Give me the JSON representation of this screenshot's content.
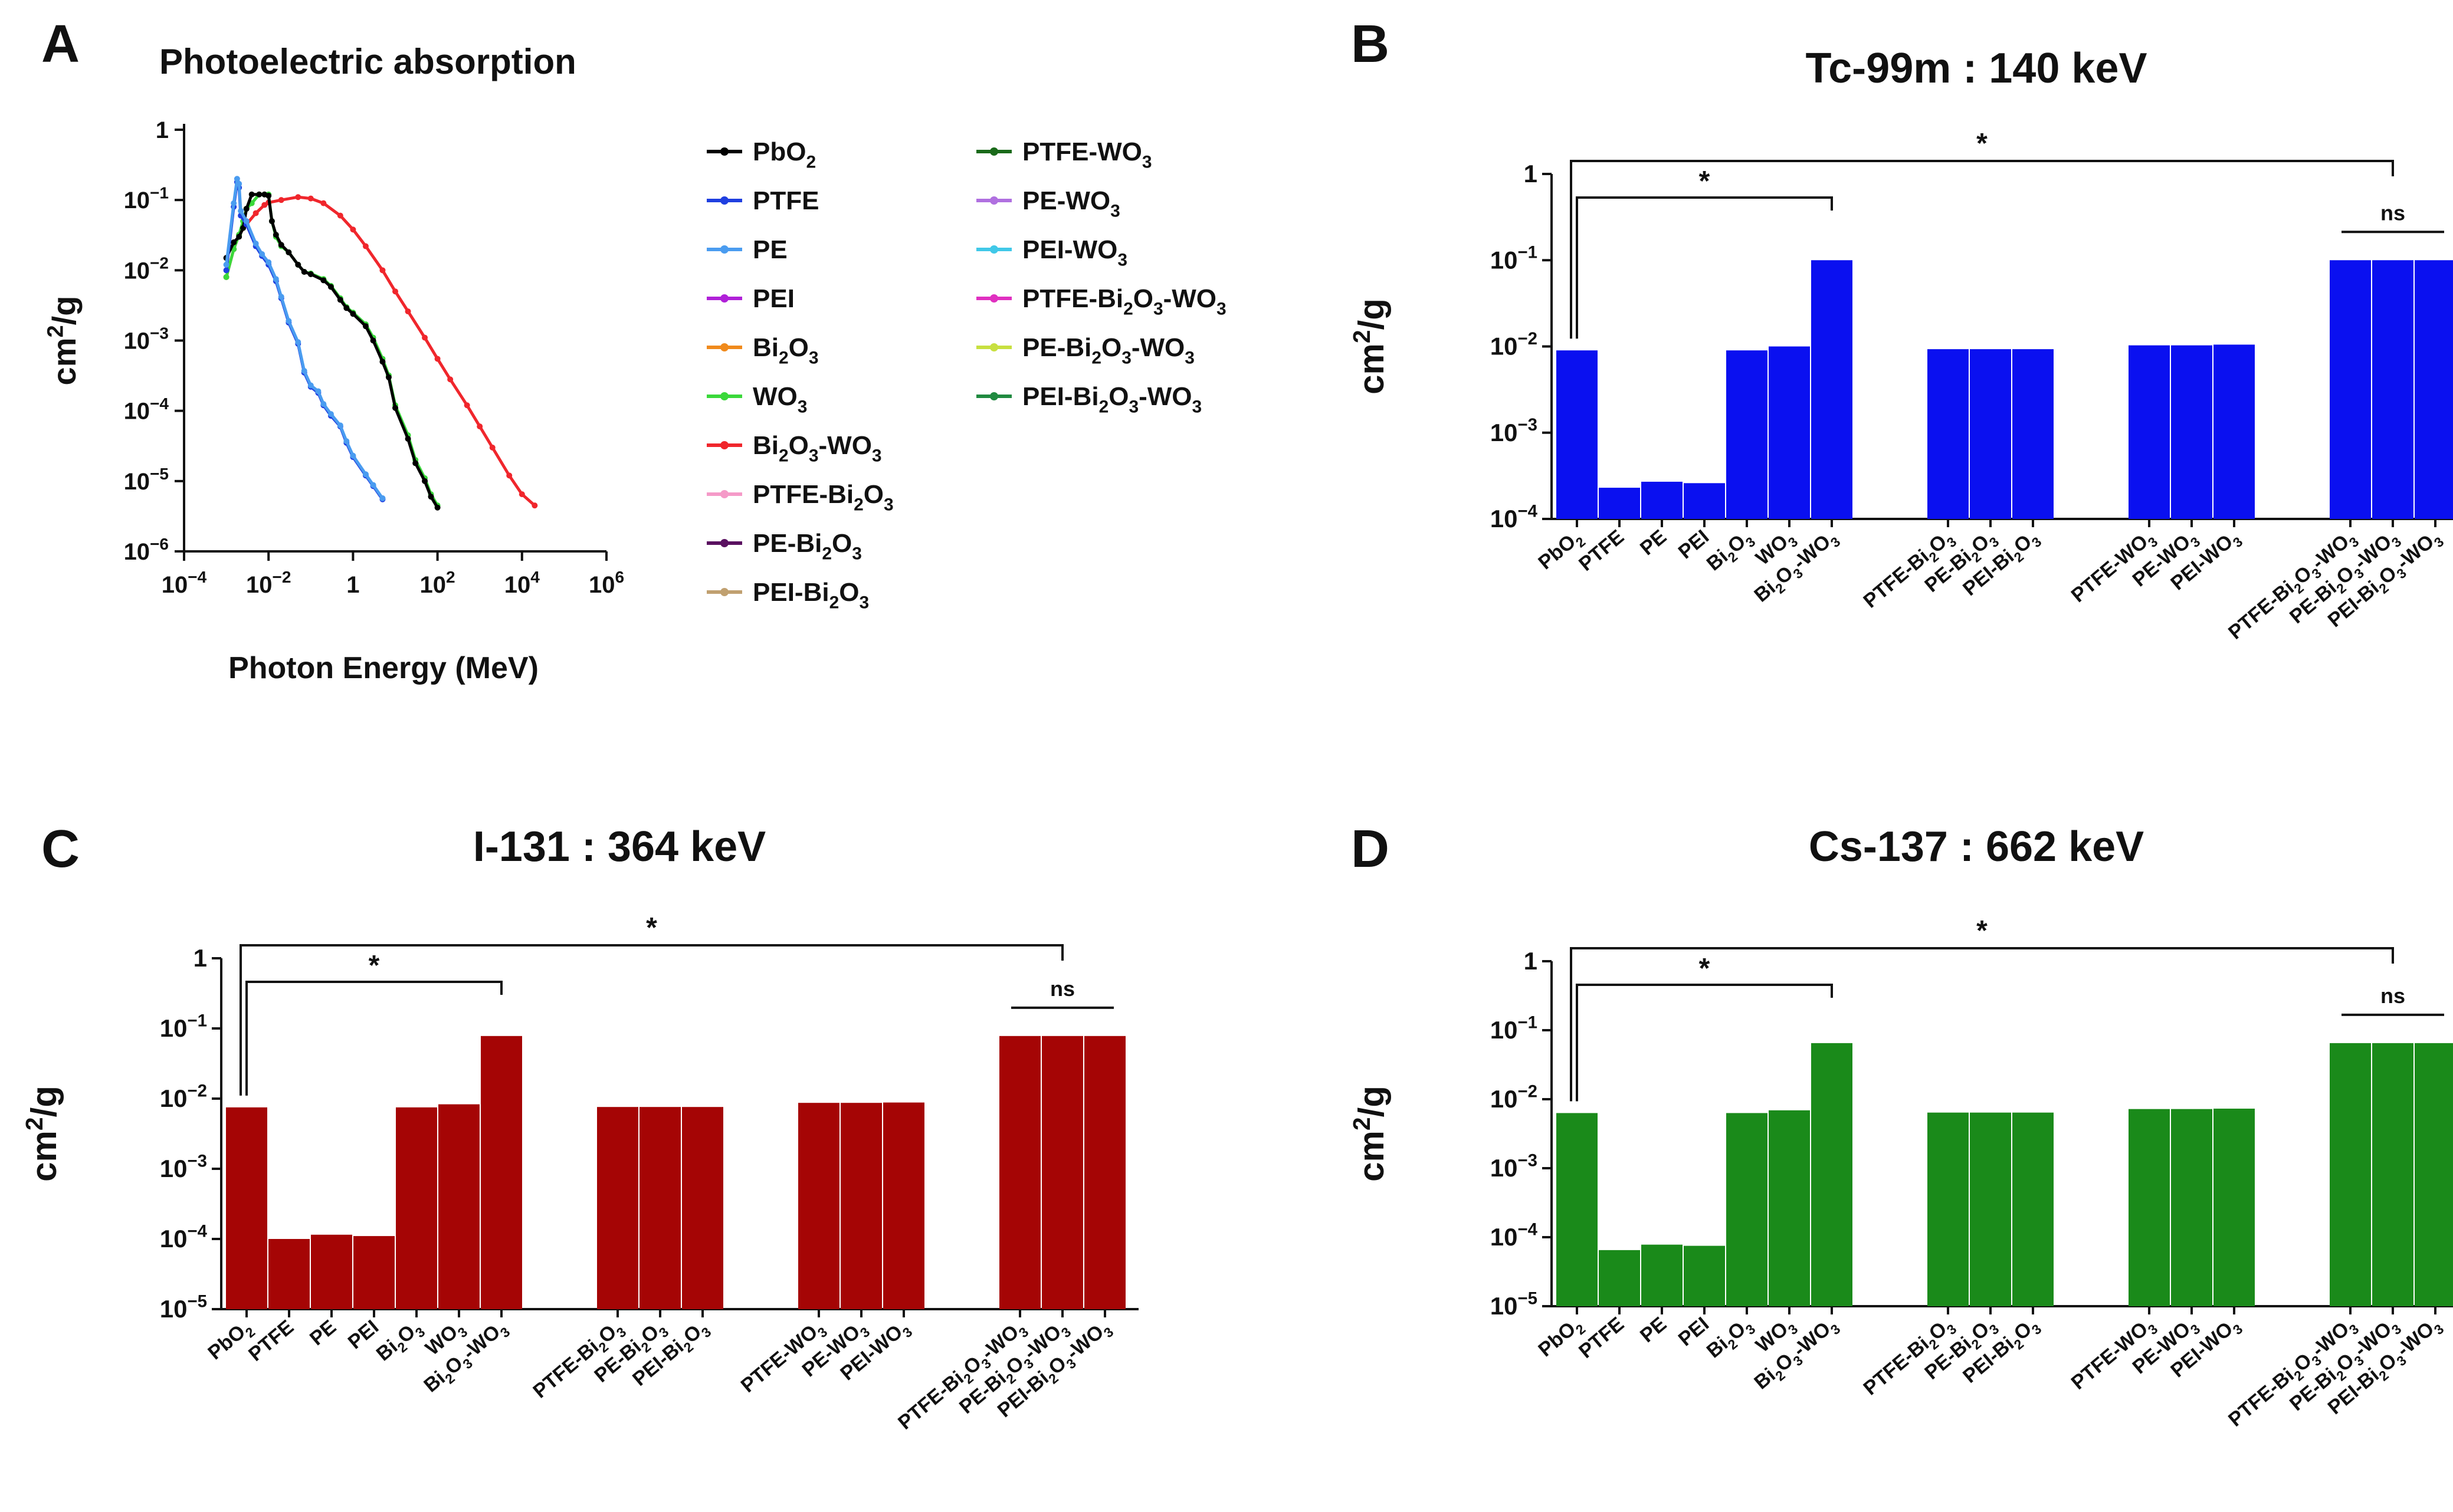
{
  "panels": {
    "A": {
      "letter": "A"
    },
    "B": {
      "letter": "B"
    },
    "C": {
      "letter": "C"
    },
    "D": {
      "letter": "D"
    }
  },
  "chart_data": [
    {
      "id": "A",
      "type": "line",
      "title": "Photoelectric absorption",
      "xlabel": "Photon Energy (MeV)",
      "ylabel": "cm2/g",
      "xscale": "log",
      "yscale": "log",
      "xlim": [
        0.0001,
        1000000
      ],
      "ylim": [
        1e-06,
        1
      ],
      "xticks": [
        0.0001,
        0.01,
        1,
        100,
        10000,
        1000000
      ],
      "yticks": [
        1e-06,
        1e-05,
        0.0001,
        0.001,
        0.01,
        0.1,
        1
      ],
      "legend_position": "right",
      "legend": [
        {
          "name": "PbO2",
          "color": "#000000"
        },
        {
          "name": "PTFE",
          "color": "#1f3fe0"
        },
        {
          "name": "PE",
          "color": "#4a9cf0"
        },
        {
          "name": "PEI",
          "color": "#b020d8"
        },
        {
          "name": "Bi2O3",
          "color": "#f08a1c"
        },
        {
          "name": "WO3",
          "color": "#3ad83a"
        },
        {
          "name": "Bi2O3-WO3",
          "color": "#f0262c"
        },
        {
          "name": "PTFE-Bi2O3",
          "color": "#f59ac8"
        },
        {
          "name": "PE-Bi2O3",
          "color": "#5a1060"
        },
        {
          "name": "PEI-Bi2O3",
          "color": "#c0a070"
        },
        {
          "name": "PTFE-WO3",
          "color": "#1a6a1a"
        },
        {
          "name": "PE-WO3",
          "color": "#b070e0"
        },
        {
          "name": "PEI-WO3",
          "color": "#40c8e8"
        },
        {
          "name": "PTFE-Bi2O3-WO3",
          "color": "#e030c0"
        },
        {
          "name": "PE-Bi2O3-WO3",
          "color": "#c8e040"
        },
        {
          "name": "PEI-Bi2O3-WO3",
          "color": "#208a40"
        }
      ],
      "series": [
        {
          "name": "Bi2O3-WO3",
          "color": "#f0262c",
          "points": [
            [
              0.001,
              0.008
            ],
            [
              0.0015,
              0.02
            ],
            [
              0.002,
              0.032
            ],
            [
              0.003,
              0.045
            ],
            [
              0.005,
              0.065
            ],
            [
              0.008,
              0.085
            ],
            [
              0.01,
              0.092
            ],
            [
              0.02,
              0.1
            ],
            [
              0.05,
              0.11
            ],
            [
              0.1,
              0.105
            ],
            [
              0.2,
              0.09
            ],
            [
              0.5,
              0.06
            ],
            [
              1,
              0.038
            ],
            [
              2,
              0.022
            ],
            [
              5,
              0.01
            ],
            [
              10,
              0.005
            ],
            [
              20,
              0.0026
            ],
            [
              50,
              0.0011
            ],
            [
              100,
              0.00055
            ],
            [
              200,
              0.00028
            ],
            [
              500,
              0.00012
            ],
            [
              1000,
              6e-05
            ],
            [
              2000,
              3e-05
            ],
            [
              5000,
              1.2e-05
            ],
            [
              10000,
              6.5e-06
            ],
            [
              20000,
              4.5e-06
            ]
          ]
        },
        {
          "name": "WO3",
          "color": "#3ad83a",
          "points": [
            [
              0.001,
              0.008
            ],
            [
              0.0015,
              0.02
            ],
            [
              0.002,
              0.032
            ],
            [
              0.0025,
              0.05
            ],
            [
              0.003,
              0.075
            ],
            [
              0.004,
              0.09
            ],
            [
              0.006,
              0.12
            ],
            [
              0.008,
              0.12
            ],
            [
              0.01,
              0.12
            ],
            [
              0.012,
              0.05
            ],
            [
              0.015,
              0.03
            ],
            [
              0.02,
              0.022
            ],
            [
              0.03,
              0.018
            ],
            [
              0.05,
              0.012
            ],
            [
              0.07,
              0.0095
            ],
            [
              0.1,
              0.009
            ],
            [
              0.2,
              0.0075
            ],
            [
              0.3,
              0.006
            ],
            [
              0.5,
              0.004
            ],
            [
              0.7,
              0.003
            ],
            [
              1,
              0.0025
            ],
            [
              2,
              0.0017
            ],
            [
              3,
              0.0011
            ],
            [
              5,
              0.00055
            ],
            [
              7,
              0.00032
            ],
            [
              10,
              0.00012
            ],
            [
              20,
              4.5e-05
            ],
            [
              30,
              2e-05
            ],
            [
              50,
              1.1e-05
            ],
            [
              70,
              6.5e-06
            ],
            [
              100,
              4.5e-06
            ]
          ]
        },
        {
          "name": "PbO2",
          "color": "#000000",
          "points": [
            [
              0.001,
              0.015
            ],
            [
              0.0015,
              0.025
            ],
            [
              0.002,
              0.03
            ],
            [
              0.0025,
              0.04
            ],
            [
              0.003,
              0.075
            ],
            [
              0.004,
              0.12
            ],
            [
              0.006,
              0.12
            ],
            [
              0.008,
              0.12
            ],
            [
              0.01,
              0.115
            ],
            [
              0.012,
              0.05
            ],
            [
              0.015,
              0.032
            ],
            [
              0.02,
              0.023
            ],
            [
              0.03,
              0.018
            ],
            [
              0.05,
              0.012
            ],
            [
              0.07,
              0.0095
            ],
            [
              0.1,
              0.0088
            ],
            [
              0.2,
              0.0072
            ],
            [
              0.3,
              0.0058
            ],
            [
              0.5,
              0.0038
            ],
            [
              0.7,
              0.0029
            ],
            [
              1,
              0.0024
            ],
            [
              2,
              0.0016
            ],
            [
              3,
              0.001
            ],
            [
              5,
              0.0005
            ],
            [
              7,
              0.0003
            ],
            [
              10,
              0.00011
            ],
            [
              20,
              4e-05
            ],
            [
              30,
              1.8e-05
            ],
            [
              50,
              1e-05
            ],
            [
              70,
              6e-06
            ],
            [
              100,
              4.2e-06
            ]
          ]
        },
        {
          "name": "PTFE",
          "color": "#1f3fe0",
          "points": [
            [
              0.001,
              0.01
            ],
            [
              0.0015,
              0.08
            ],
            [
              0.0018,
              0.18
            ],
            [
              0.002,
              0.15
            ],
            [
              0.0022,
              0.06
            ],
            [
              0.003,
              0.045
            ],
            [
              0.005,
              0.022
            ],
            [
              0.007,
              0.016
            ],
            [
              0.01,
              0.012
            ],
            [
              0.015,
              0.007
            ],
            [
              0.02,
              0.004
            ],
            [
              0.03,
              0.0018
            ],
            [
              0.05,
              0.0009
            ],
            [
              0.07,
              0.00035
            ],
            [
              0.1,
              0.00022
            ],
            [
              0.15,
              0.00018
            ],
            [
              0.2,
              0.00012
            ],
            [
              0.3,
              8.5e-05
            ],
            [
              0.5,
              6e-05
            ],
            [
              0.7,
              3.5e-05
            ],
            [
              1,
              2.2e-05
            ],
            [
              2,
              1.2e-05
            ],
            [
              3,
              8.5e-06
            ],
            [
              5,
              5.5e-06
            ]
          ]
        },
        {
          "name": "PE",
          "color": "#4a9cf0",
          "points": [
            [
              0.001,
              0.012
            ],
            [
              0.0015,
              0.09
            ],
            [
              0.0018,
              0.2
            ],
            [
              0.002,
              0.17
            ],
            [
              0.0022,
              0.07
            ],
            [
              0.003,
              0.05
            ],
            [
              0.005,
              0.024
            ],
            [
              0.007,
              0.017
            ],
            [
              0.01,
              0.013
            ],
            [
              0.015,
              0.0075
            ],
            [
              0.02,
              0.0042
            ],
            [
              0.03,
              0.0019
            ],
            [
              0.05,
              0.00095
            ],
            [
              0.07,
              0.00037
            ],
            [
              0.1,
              0.00023
            ],
            [
              0.15,
              0.00019
            ],
            [
              0.2,
              0.000125
            ],
            [
              0.3,
              9e-05
            ],
            [
              0.5,
              6.2e-05
            ],
            [
              0.7,
              3.7e-05
            ],
            [
              1,
              2.3e-05
            ],
            [
              2,
              1.25e-05
            ],
            [
              3,
              8.8e-06
            ],
            [
              5,
              5.7e-06
            ]
          ]
        }
      ]
    },
    {
      "id": "B",
      "type": "bar",
      "title": "Tc-99m : 140 keV",
      "ylabel": "cm2/g",
      "yscale": "log",
      "ylim": [
        0.0001,
        1
      ],
      "yticks": [
        0.0001,
        0.001,
        0.01,
        0.1,
        1
      ],
      "color": "#0a10f0",
      "categories": [
        "PbO2",
        "PTFE",
        "PE",
        "PEI",
        "Bi2O3",
        "WO3",
        "Bi2O3-WO3",
        "PTFE-Bi2O3",
        "PE-Bi2O3",
        "PEI-Bi2O3",
        "PTFE-WO3",
        "PE-WO3",
        "PEI-WO3",
        "PTFE-Bi2O3-WO3",
        "PE-Bi2O3-WO3",
        "PEI-Bi2O3-WO3"
      ],
      "values": [
        0.009,
        0.00023,
        0.00027,
        0.00026,
        0.009,
        0.01,
        0.1,
        0.0093,
        0.0093,
        0.0093,
        0.0103,
        0.0103,
        0.0105,
        0.1,
        0.1,
        0.1
      ],
      "annotations": [
        {
          "from": "PbO2",
          "to": "Bi2O3-WO3",
          "label": "*"
        },
        {
          "from": "PbO2",
          "to": "PE-Bi2O3-WO3",
          "label": "*"
        },
        {
          "from": "PTFE-Bi2O3-WO3",
          "to": "PEI-Bi2O3-WO3",
          "label": "ns"
        }
      ]
    },
    {
      "id": "C",
      "type": "bar",
      "title": "I-131 : 364 keV",
      "ylabel": "cm2/g",
      "yscale": "log",
      "ylim": [
        1e-05,
        1
      ],
      "yticks": [
        1e-05,
        0.0001,
        0.001,
        0.01,
        0.1,
        1
      ],
      "color": "#a50505",
      "categories": [
        "PbO2",
        "PTFE",
        "PE",
        "PEI",
        "Bi2O3",
        "WO3",
        "Bi2O3-WO3",
        "PTFE-Bi2O3",
        "PE-Bi2O3",
        "PEI-Bi2O3",
        "PTFE-WO3",
        "PE-WO3",
        "PEI-WO3",
        "PTFE-Bi2O3-WO3",
        "PE-Bi2O3-WO3",
        "PEI-Bi2O3-WO3"
      ],
      "values": [
        0.0075,
        0.0001,
        0.000115,
        0.00011,
        0.0075,
        0.0083,
        0.078,
        0.0076,
        0.0076,
        0.0076,
        0.0087,
        0.0087,
        0.0088,
        0.078,
        0.078,
        0.078
      ],
      "annotations": [
        {
          "from": "PbO2",
          "to": "Bi2O3-WO3",
          "label": "*"
        },
        {
          "from": "PbO2",
          "to": "PE-Bi2O3-WO3",
          "label": "*"
        },
        {
          "from": "PTFE-Bi2O3-WO3",
          "to": "PEI-Bi2O3-WO3",
          "label": "ns"
        }
      ]
    },
    {
      "id": "D",
      "type": "bar",
      "title": "Cs-137 : 662 keV",
      "ylabel": "cm2/g",
      "yscale": "log",
      "ylim": [
        1e-05,
        1
      ],
      "yticks": [
        1e-05,
        0.0001,
        0.001,
        0.01,
        0.1,
        1
      ],
      "color": "#1a8a1a",
      "categories": [
        "PbO2",
        "PTFE",
        "PE",
        "PEI",
        "Bi2O3",
        "WO3",
        "Bi2O3-WO3",
        "PTFE-Bi2O3",
        "PE-Bi2O3",
        "PEI-Bi2O3",
        "PTFE-WO3",
        "PE-WO3",
        "PEI-WO3",
        "PTFE-Bi2O3-WO3",
        "PE-Bi2O3-WO3",
        "PEI-Bi2O3-WO3"
      ],
      "values": [
        0.0063,
        6.5e-05,
        7.8e-05,
        7.5e-05,
        0.0063,
        0.0069,
        0.065,
        0.0064,
        0.0064,
        0.0064,
        0.0072,
        0.0072,
        0.0073,
        0.065,
        0.065,
        0.065
      ],
      "annotations": [
        {
          "from": "PbO2",
          "to": "Bi2O3-WO3",
          "label": "*"
        },
        {
          "from": "PbO2",
          "to": "PE-Bi2O3-WO3",
          "label": "*"
        },
        {
          "from": "PTFE-Bi2O3-WO3",
          "to": "PEI-Bi2O3-WO3",
          "label": "ns"
        }
      ]
    }
  ]
}
